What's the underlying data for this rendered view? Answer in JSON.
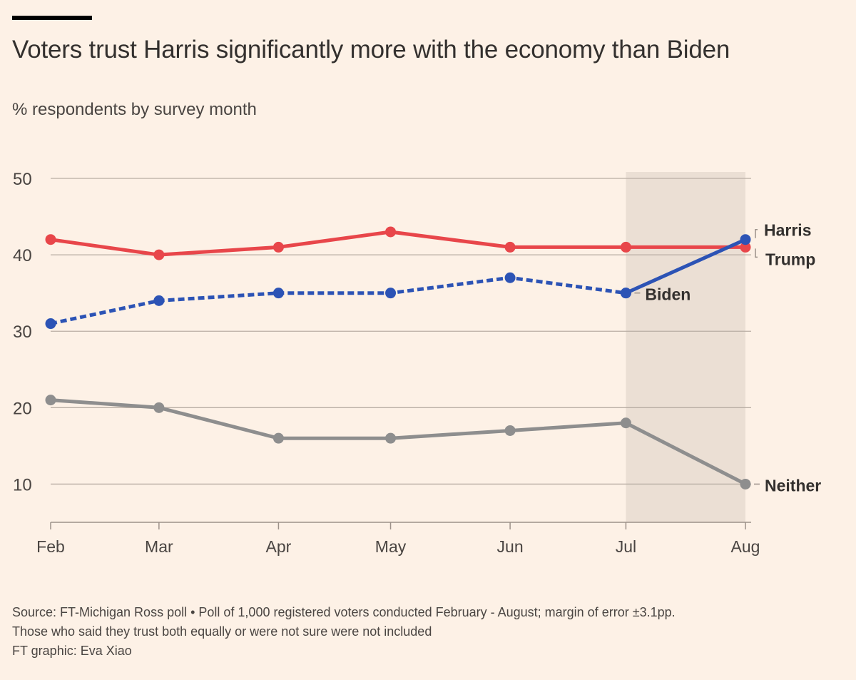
{
  "header": {
    "title": "Voters trust Harris significantly more with the economy than Biden",
    "subtitle": "% respondents by survey month"
  },
  "footer": {
    "source": "Source: FT-Michigan Ross poll • Poll of 1,000 registered voters conducted February - August; margin of error ±3.1pp.",
    "note": "Those who said they trust both equally or were not sure were not included",
    "credit": "FT graphic: Eva Xiao"
  },
  "chart_data": {
    "type": "line",
    "title": "Voters trust Harris significantly more with the economy than Biden",
    "subtitle": "% respondents by survey month",
    "xlabel": "",
    "ylabel": "% respondents",
    "categories": [
      "Feb",
      "Mar",
      "Apr",
      "May",
      "Jun",
      "Jul",
      "Aug"
    ],
    "x_day_offsets": [
      0,
      29,
      61,
      91,
      123,
      154,
      186
    ],
    "yticks": [
      10,
      20,
      30,
      40,
      50
    ],
    "ylim": [
      5,
      50
    ],
    "grid": true,
    "highlight_range": [
      "Jul",
      "Aug"
    ],
    "legend": "direct-labels-right",
    "series": [
      {
        "name": "Trump",
        "color": "#e8464a",
        "style": "solid",
        "values": [
          42,
          40,
          41,
          43,
          41,
          41,
          41
        ]
      },
      {
        "name": "Biden",
        "color": "#2c53b5",
        "style": "dotted",
        "values": [
          31,
          34,
          35,
          35,
          37,
          35,
          null
        ]
      },
      {
        "name": "Harris",
        "color": "#2c53b5",
        "style": "solid",
        "values": [
          null,
          null,
          null,
          null,
          null,
          35,
          42
        ]
      },
      {
        "name": "Neither",
        "color": "#8e8e8e",
        "style": "solid",
        "values": [
          21,
          20,
          16,
          16,
          17,
          18,
          10
        ]
      }
    ],
    "colors": {
      "background": "#fdf1e6",
      "highlight": "#ebdfd4",
      "grid": "#b9aea4",
      "text": "#33302e"
    }
  }
}
